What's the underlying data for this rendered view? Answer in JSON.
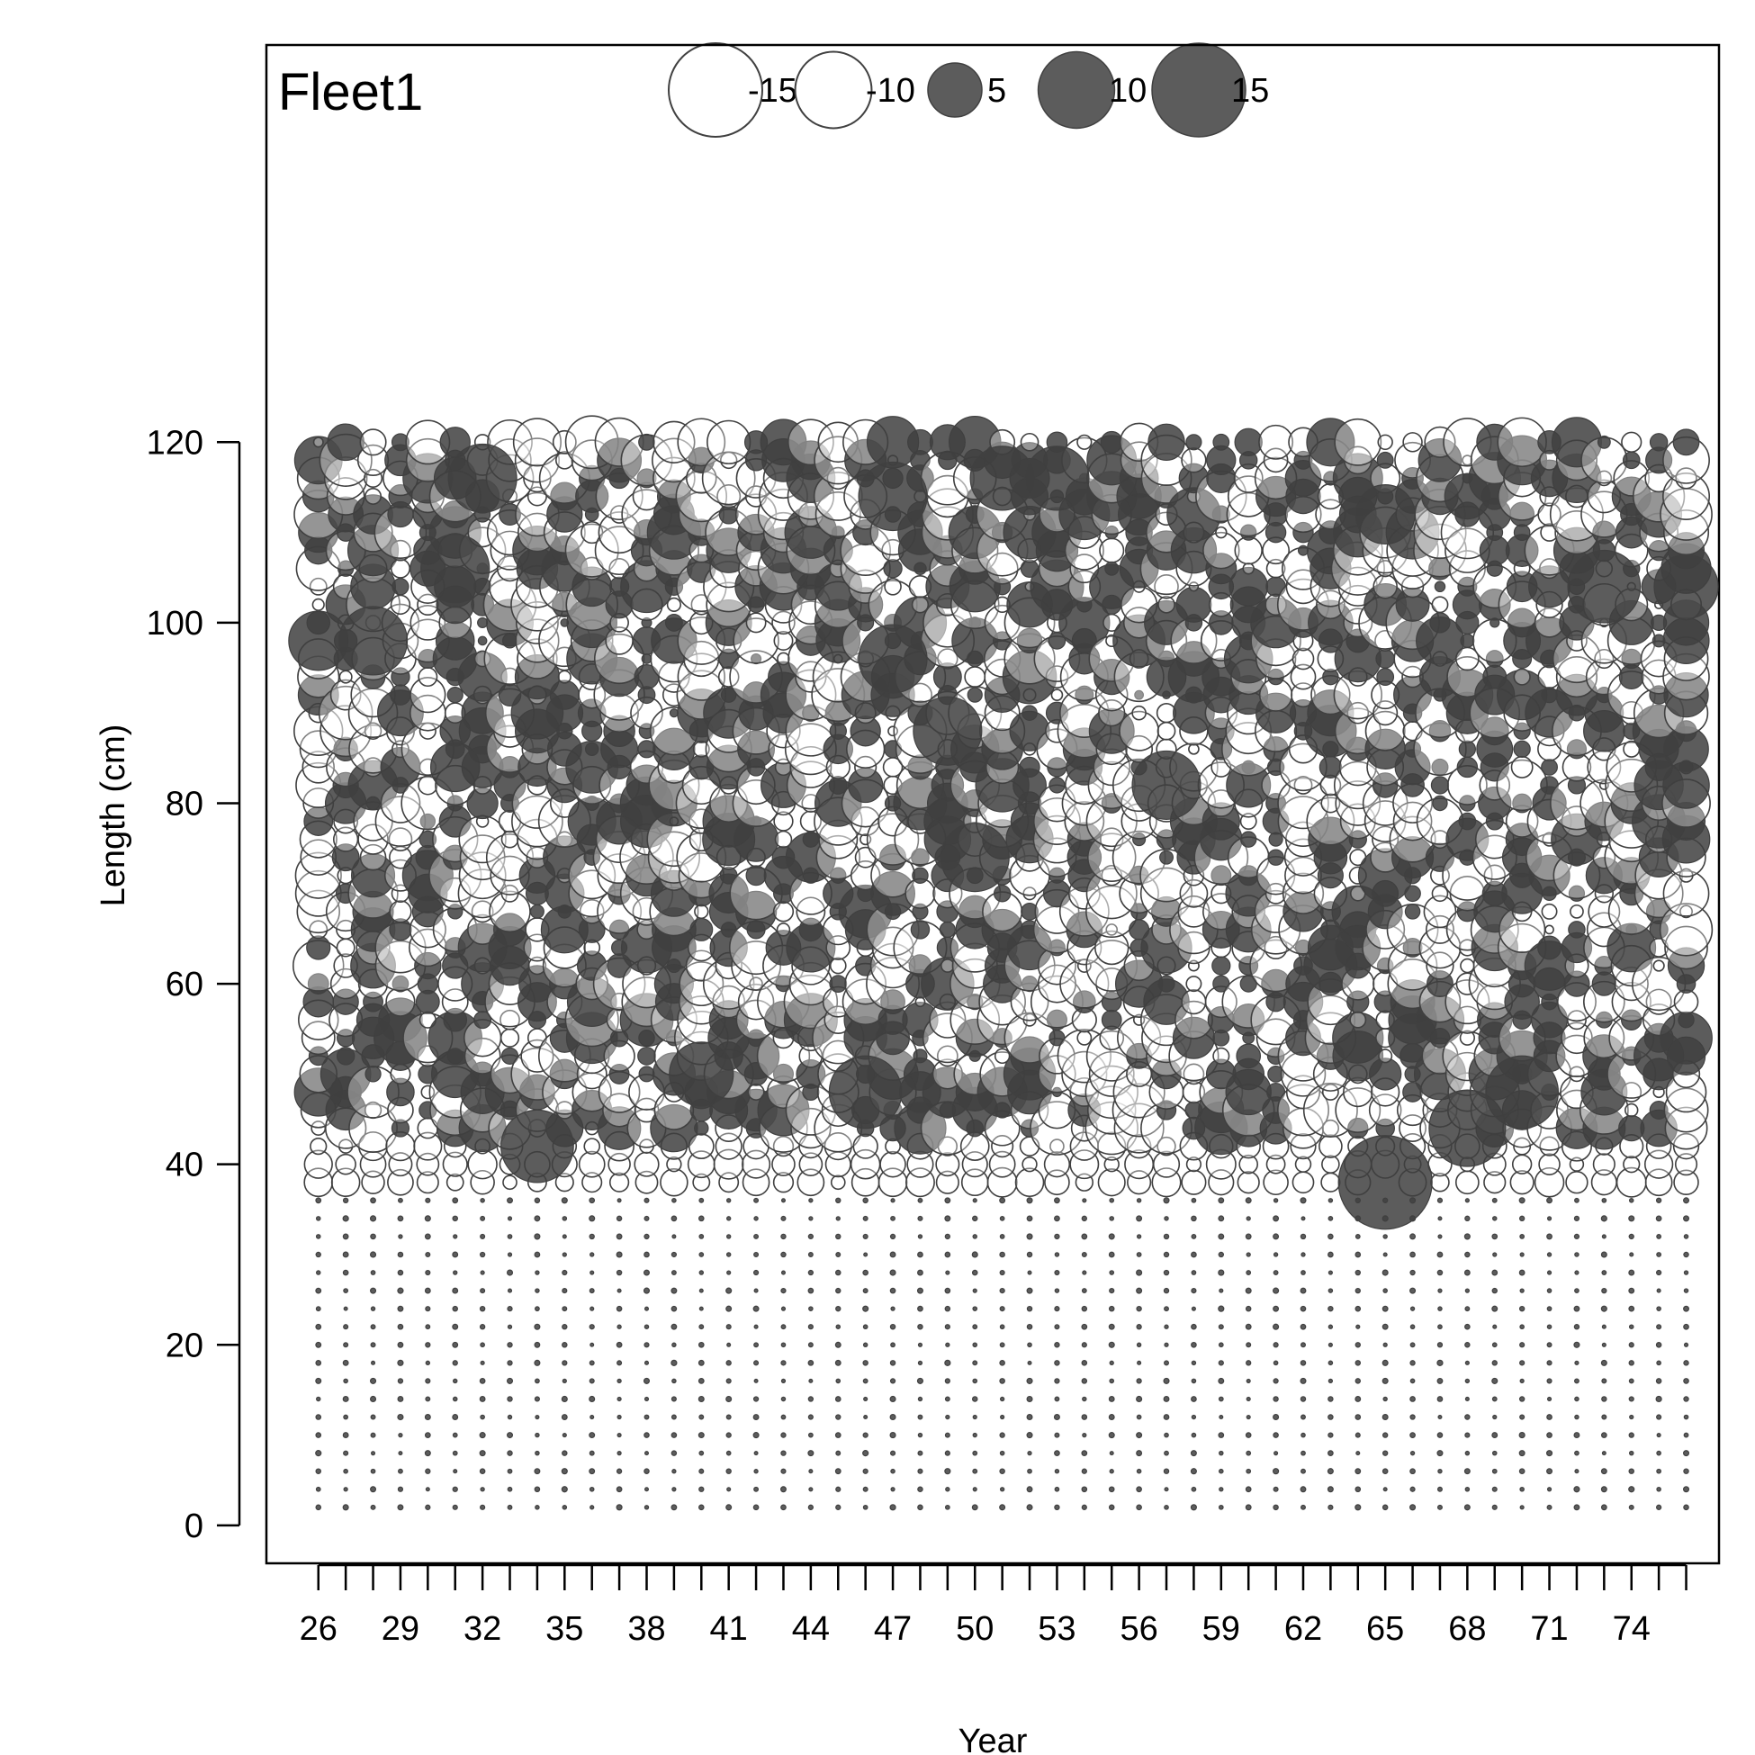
{
  "chart_data": {
    "type": "scatter",
    "subtype": "bubble",
    "panel_label": "Fleet1",
    "xlabel": "Year",
    "ylabel": "Length (cm)",
    "x_tick_labels": [
      "26",
      "29",
      "32",
      "35",
      "38",
      "41",
      "44",
      "47",
      "50",
      "53",
      "56",
      "59",
      "62",
      "65",
      "68",
      "71",
      "74"
    ],
    "y_tick_labels": [
      "0",
      "20",
      "40",
      "60",
      "80",
      "100",
      "120"
    ],
    "xlim": [
      24.1,
      77.2
    ],
    "ylim": [
      -4.2,
      164
    ],
    "x_minor_ticks": [
      26,
      76
    ],
    "size_legend": [
      {
        "label": "-15",
        "value": -15
      },
      {
        "label": "-10",
        "value": -10
      },
      {
        "label": "5",
        "value": 5
      },
      {
        "label": "10",
        "value": 10
      },
      {
        "label": "15",
        "value": 15
      }
    ],
    "years": [
      26,
      76
    ],
    "length_bins": [
      2,
      120,
      2
    ],
    "empty_length_max": 36,
    "notable_points": [
      {
        "x": 65,
        "y": 38,
        "value": 15
      },
      {
        "x": 34,
        "y": 42,
        "value": 9
      },
      {
        "x": 68,
        "y": 44,
        "value": 10
      },
      {
        "x": 47,
        "y": 114,
        "value": 8
      },
      {
        "x": 47,
        "y": 96,
        "value": 8
      },
      {
        "x": 70,
        "y": 48,
        "value": 9
      },
      {
        "x": 46,
        "y": 48,
        "value": 9
      },
      {
        "x": 32,
        "y": 116,
        "value": 8
      },
      {
        "x": 31,
        "y": 106,
        "value": 8
      },
      {
        "x": 73,
        "y": 104,
        "value": 9
      },
      {
        "x": 76,
        "y": 104,
        "value": 7
      },
      {
        "x": 49,
        "y": 88,
        "value": 8
      },
      {
        "x": 50,
        "y": 74,
        "value": 8
      },
      {
        "x": 57,
        "y": 82,
        "value": 8
      },
      {
        "x": 53,
        "y": 116,
        "value": 7
      },
      {
        "x": 51,
        "y": 116,
        "value": 7
      },
      {
        "x": 65,
        "y": 112,
        "value": 6
      },
      {
        "x": 40,
        "y": 50,
        "value": 7
      },
      {
        "x": 26,
        "y": 98,
        "value": 6
      },
      {
        "x": 28,
        "y": 98,
        "value": 8
      }
    ],
    "colors": {
      "positive_fill": "rgba(64,64,64,0.85)",
      "negative_stroke": "#404040"
    }
  }
}
